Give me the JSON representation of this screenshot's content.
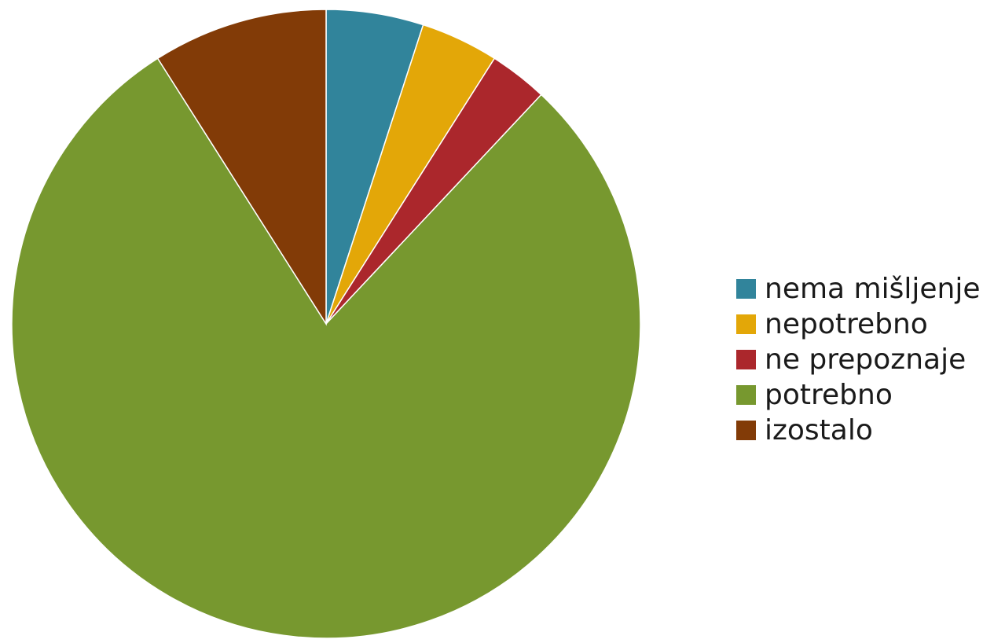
{
  "chart_data": {
    "type": "pie",
    "categories": [
      "nema mišljenje",
      "nepotrebno",
      "ne prepoznaje",
      "potrebno",
      "izostalo"
    ],
    "values": [
      5,
      4,
      3,
      79,
      9
    ],
    "colors": [
      "#31849b",
      "#e3a708",
      "#ab272c",
      "#77982f",
      "#823b07"
    ],
    "start_angle": "top",
    "direction": "clockwise",
    "legend_position": "right",
    "title": ""
  }
}
